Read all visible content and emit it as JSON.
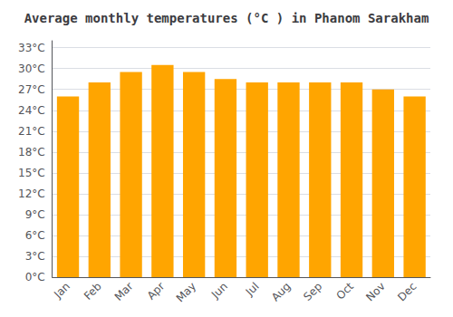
{
  "chart_data": {
    "type": "bar",
    "title": "Average monthly temperatures (°C ) in Phanom Sarakham",
    "categories": [
      "Jan",
      "Feb",
      "Mar",
      "Apr",
      "May",
      "Jun",
      "Jul",
      "Aug",
      "Sep",
      "Oct",
      "Nov",
      "Dec"
    ],
    "values": [
      26.0,
      28.0,
      29.5,
      30.5,
      29.5,
      28.5,
      28.0,
      28.0,
      28.0,
      28.0,
      27.0,
      26.0
    ],
    "color": "#FFA500",
    "ylim": [
      0,
      34
    ],
    "yticks": [
      {
        "value": 0,
        "label": "0°C"
      },
      {
        "value": 3,
        "label": "3°C"
      },
      {
        "value": 6,
        "label": "6°C"
      },
      {
        "value": 9,
        "label": "9°C"
      },
      {
        "value": 12,
        "label": "12°C"
      },
      {
        "value": 15,
        "label": "15°C"
      },
      {
        "value": 18,
        "label": "18°C"
      },
      {
        "value": 21,
        "label": "21°C"
      },
      {
        "value": 24,
        "label": "24°C"
      },
      {
        "value": 27,
        "label": "27°C"
      },
      {
        "value": 30,
        "label": "30°C"
      },
      {
        "value": 33,
        "label": "33°C"
      }
    ],
    "grid": true
  }
}
